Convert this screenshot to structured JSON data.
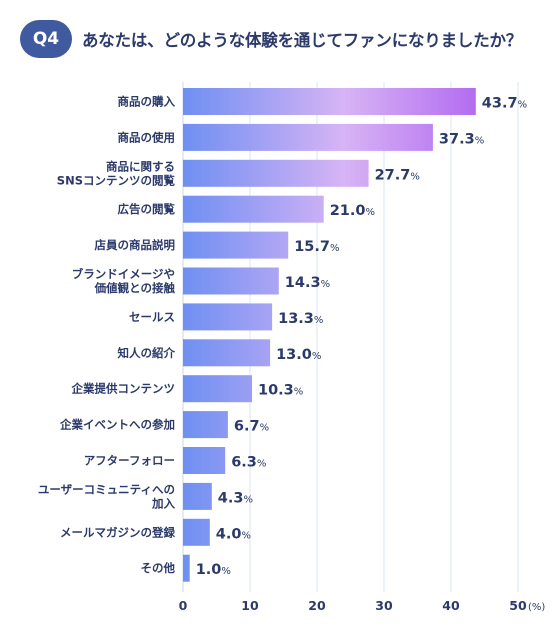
{
  "header": {
    "badge": "Q4",
    "title": "あなたは、どのような体験を通じてファンになりましたか？"
  },
  "colors": {
    "bar_start": "#6f8ff2",
    "bar_mid": "#d7b4f5",
    "bar_end": "#b36cf0",
    "text": "#2b3a6b",
    "grid": "#dbe3f3",
    "badge": "#3f5a9e"
  },
  "chart_data": {
    "type": "bar",
    "orientation": "horizontal",
    "categories": [
      [
        "商品の購入"
      ],
      [
        "商品の使用"
      ],
      [
        "商品に関する",
        "SNSコンテンツの閲覧"
      ],
      [
        "広告の閲覧"
      ],
      [
        "店員の商品説明"
      ],
      [
        "ブランドイメージや",
        "価値観との接触"
      ],
      [
        "セールス"
      ],
      [
        "知人の紹介"
      ],
      [
        "企業提供コンテンツ"
      ],
      [
        "企業イベントへの参加"
      ],
      [
        "アフターフォロー"
      ],
      [
        "ユーザーコミュニティへの",
        "加入"
      ],
      [
        "メールマガジンの登録"
      ],
      [
        "その他"
      ]
    ],
    "values": [
      43.7,
      37.3,
      27.7,
      21.0,
      15.7,
      14.3,
      13.3,
      13.0,
      10.3,
      6.7,
      6.3,
      4.3,
      4.0,
      1.0
    ],
    "value_labels": [
      "43.7",
      "37.3",
      "27.7",
      "21.0",
      "15.7",
      "14.3",
      "13.3",
      "13.0",
      "10.3",
      "6.7",
      "6.3",
      "4.3",
      "4.0",
      "1.0"
    ],
    "value_unit": "%",
    "xlim": [
      0,
      50
    ],
    "xticks": [
      "0",
      "10",
      "20",
      "30",
      "40",
      "50"
    ],
    "x_unit_label": "(%)",
    "grid": true
  }
}
